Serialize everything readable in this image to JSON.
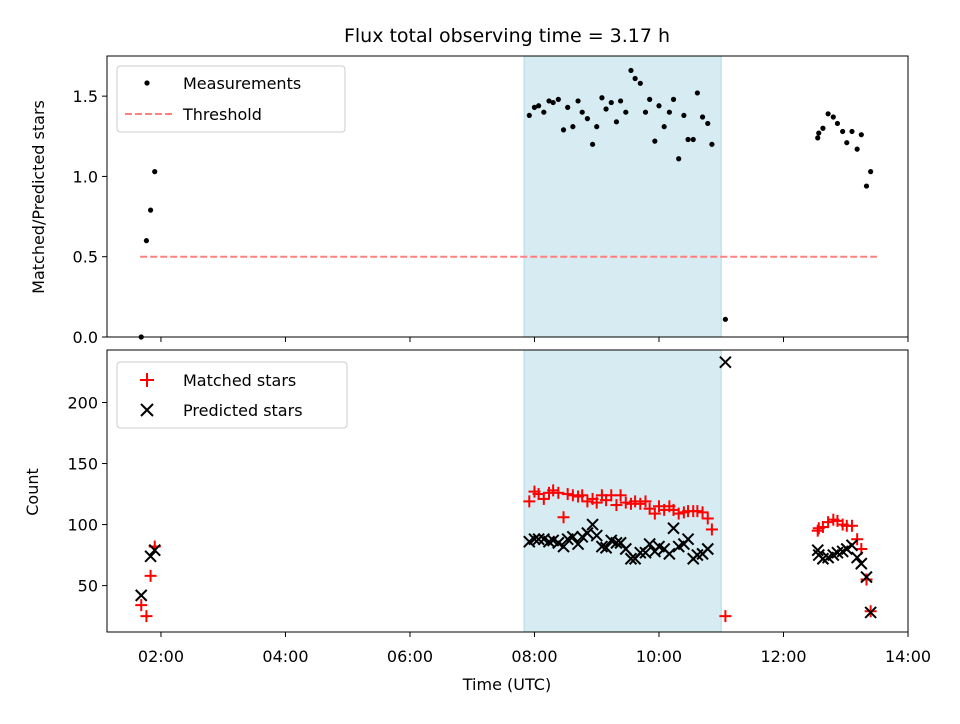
{
  "chart_data": [
    {
      "type": "scatter",
      "title": "Flux total observing time = 3.17 h",
      "ylabel": "Matched/Predicted stars",
      "xlabel": "",
      "xlim": [
        "01:08",
        "14:00"
      ],
      "ylim": [
        0,
        1.75
      ],
      "yticks": [
        "0.0",
        "0.5",
        "1.0",
        "1.5"
      ],
      "yticks_values": [
        0,
        0.5,
        1.0,
        1.5
      ],
      "legend": {
        "position": "top-left",
        "entries": [
          "Measurements",
          "Threshold"
        ]
      },
      "shaded_span": {
        "from": "07:50",
        "to": "11:00",
        "color": "#add8e6"
      },
      "threshold": {
        "name": "Threshold",
        "value": 0.5,
        "from": "01:40",
        "to": "13:30",
        "color": "#ff8080"
      },
      "series": [
        {
          "name": "Measurements",
          "color": "#000000",
          "points": [
            [
              "01:41",
              0.0
            ],
            [
              "01:46",
              0.6
            ],
            [
              "01:50",
              0.79
            ],
            [
              "01:54",
              1.03
            ],
            [
              "07:55",
              1.38
            ],
            [
              "08:00",
              1.43
            ],
            [
              "08:04",
              1.44
            ],
            [
              "08:09",
              1.4
            ],
            [
              "08:14",
              1.47
            ],
            [
              "08:18",
              1.46
            ],
            [
              "08:23",
              1.48
            ],
            [
              "08:28",
              1.29
            ],
            [
              "08:32",
              1.43
            ],
            [
              "08:37",
              1.31
            ],
            [
              "08:42",
              1.47
            ],
            [
              "08:46",
              1.4
            ],
            [
              "08:51",
              1.36
            ],
            [
              "08:56",
              1.2
            ],
            [
              "09:00",
              1.31
            ],
            [
              "09:05",
              1.49
            ],
            [
              "09:09",
              1.42
            ],
            [
              "09:14",
              1.46
            ],
            [
              "09:19",
              1.34
            ],
            [
              "09:23",
              1.47
            ],
            [
              "09:28",
              1.4
            ],
            [
              "09:33",
              1.66
            ],
            [
              "09:37",
              1.61
            ],
            [
              "09:42",
              1.58
            ],
            [
              "09:47",
              1.4
            ],
            [
              "09:51",
              1.48
            ],
            [
              "09:56",
              1.22
            ],
            [
              "10:00",
              1.44
            ],
            [
              "10:05",
              1.31
            ],
            [
              "10:10",
              1.4
            ],
            [
              "10:14",
              1.48
            ],
            [
              "10:19",
              1.11
            ],
            [
              "10:24",
              1.38
            ],
            [
              "10:28",
              1.23
            ],
            [
              "10:33",
              1.23
            ],
            [
              "10:37",
              1.52
            ],
            [
              "10:42",
              1.37
            ],
            [
              "10:47",
              1.33
            ],
            [
              "10:51",
              1.2
            ],
            [
              "11:04",
              0.11
            ],
            [
              "12:33",
              1.24
            ],
            [
              "12:34",
              1.27
            ],
            [
              "12:38",
              1.3
            ],
            [
              "12:43",
              1.39
            ],
            [
              "12:48",
              1.37
            ],
            [
              "12:52",
              1.33
            ],
            [
              "12:57",
              1.28
            ],
            [
              "13:01",
              1.21
            ],
            [
              "13:06",
              1.28
            ],
            [
              "13:11",
              1.17
            ],
            [
              "13:15",
              1.26
            ],
            [
              "13:20",
              0.94
            ],
            [
              "13:24",
              1.03
            ]
          ]
        }
      ]
    },
    {
      "type": "scatter",
      "title": "",
      "xlabel": "Time (UTC)",
      "ylabel": "Count",
      "xlim": [
        "01:08",
        "14:00"
      ],
      "ylim": [
        12,
        243
      ],
      "xticks": [
        "02:00",
        "04:00",
        "06:00",
        "08:00",
        "10:00",
        "12:00",
        "14:00"
      ],
      "yticks": [
        "50",
        "100",
        "150",
        "200"
      ],
      "yticks_values": [
        50,
        100,
        150,
        200
      ],
      "legend": {
        "position": "top-left",
        "entries": [
          "Matched stars",
          "Predicted stars"
        ]
      },
      "shaded_span": {
        "from": "07:50",
        "to": "11:00",
        "color": "#add8e6"
      },
      "series": [
        {
          "name": "Matched stars",
          "color": "#ff0000",
          "marker": "plus",
          "points": [
            [
              "01:41",
              34
            ],
            [
              "01:46",
              25
            ],
            [
              "01:50",
              58
            ],
            [
              "01:54",
              82
            ],
            [
              "07:55",
              119
            ],
            [
              "08:00",
              127
            ],
            [
              "08:04",
              125
            ],
            [
              "08:09",
              121
            ],
            [
              "08:14",
              126
            ],
            [
              "08:18",
              128
            ],
            [
              "08:23",
              126
            ],
            [
              "08:28",
              106
            ],
            [
              "08:32",
              125
            ],
            [
              "08:37",
              124
            ],
            [
              "08:42",
              123
            ],
            [
              "08:46",
              124
            ],
            [
              "08:51",
              119
            ],
            [
              "08:56",
              121
            ],
            [
              "09:00",
              118
            ],
            [
              "09:05",
              124
            ],
            [
              "09:09",
              120
            ],
            [
              "09:14",
              124
            ],
            [
              "09:19",
              116
            ],
            [
              "09:23",
              124
            ],
            [
              "09:28",
              118
            ],
            [
              "09:33",
              117
            ],
            [
              "09:37",
              119
            ],
            [
              "09:42",
              117
            ],
            [
              "09:47",
              119
            ],
            [
              "09:51",
              113
            ],
            [
              "09:56",
              109
            ],
            [
              "10:00",
              115
            ],
            [
              "10:05",
              112
            ],
            [
              "10:10",
              115
            ],
            [
              "10:14",
              112
            ],
            [
              "10:19",
              109
            ],
            [
              "10:24",
              110
            ],
            [
              "10:28",
              111
            ],
            [
              "10:33",
              111
            ],
            [
              "10:37",
              111
            ],
            [
              "10:42",
              110
            ],
            [
              "10:47",
              105
            ],
            [
              "10:51",
              96
            ],
            [
              "11:04",
              25
            ],
            [
              "12:33",
              95
            ],
            [
              "12:34",
              97
            ],
            [
              "12:38",
              98
            ],
            [
              "12:43",
              102
            ],
            [
              "12:48",
              104
            ],
            [
              "12:52",
              103
            ],
            [
              "12:57",
              100
            ],
            [
              "13:01",
              99
            ],
            [
              "13:06",
              99
            ],
            [
              "13:11",
              88
            ],
            [
              "13:15",
              80
            ],
            [
              "13:20",
              55
            ],
            [
              "13:24",
              29
            ]
          ]
        },
        {
          "name": "Predicted stars",
          "color": "#000000",
          "marker": "x",
          "points": [
            [
              "01:41",
              42
            ],
            [
              "01:50",
              74
            ],
            [
              "01:54",
              79
            ],
            [
              "07:55",
              86
            ],
            [
              "08:00",
              88
            ],
            [
              "08:04",
              88
            ],
            [
              "08:09",
              88
            ],
            [
              "08:14",
              86
            ],
            [
              "08:18",
              87
            ],
            [
              "08:23",
              85
            ],
            [
              "08:28",
              82
            ],
            [
              "08:32",
              88
            ],
            [
              "08:37",
              90
            ],
            [
              "08:42",
              84
            ],
            [
              "08:46",
              90
            ],
            [
              "08:51",
              93
            ],
            [
              "08:56",
              100
            ],
            [
              "09:00",
              91
            ],
            [
              "09:05",
              82
            ],
            [
              "09:09",
              81
            ],
            [
              "09:14",
              87
            ],
            [
              "09:19",
              85
            ],
            [
              "09:23",
              85
            ],
            [
              "09:28",
              80
            ],
            [
              "09:33",
              72
            ],
            [
              "09:37",
              72
            ],
            [
              "09:42",
              77
            ],
            [
              "09:47",
              77
            ],
            [
              "09:51",
              84
            ],
            [
              "09:56",
              78
            ],
            [
              "10:00",
              82
            ],
            [
              "10:05",
              80
            ],
            [
              "10:10",
              76
            ],
            [
              "10:14",
              97
            ],
            [
              "10:19",
              82
            ],
            [
              "10:24",
              84
            ],
            [
              "10:28",
              88
            ],
            [
              "10:33",
              72
            ],
            [
              "10:37",
              75
            ],
            [
              "10:42",
              76
            ],
            [
              "10:47",
              80
            ],
            [
              "11:04",
              233
            ],
            [
              "12:33",
              79
            ],
            [
              "12:34",
              75
            ],
            [
              "12:38",
              72
            ],
            [
              "12:43",
              73
            ],
            [
              "12:48",
              75
            ],
            [
              "12:52",
              77
            ],
            [
              "12:57",
              78
            ],
            [
              "13:01",
              80
            ],
            [
              "13:06",
              83
            ],
            [
              "13:11",
              73
            ],
            [
              "13:15",
              68
            ],
            [
              "13:20",
              57
            ],
            [
              "13:24",
              28
            ]
          ]
        }
      ]
    }
  ]
}
